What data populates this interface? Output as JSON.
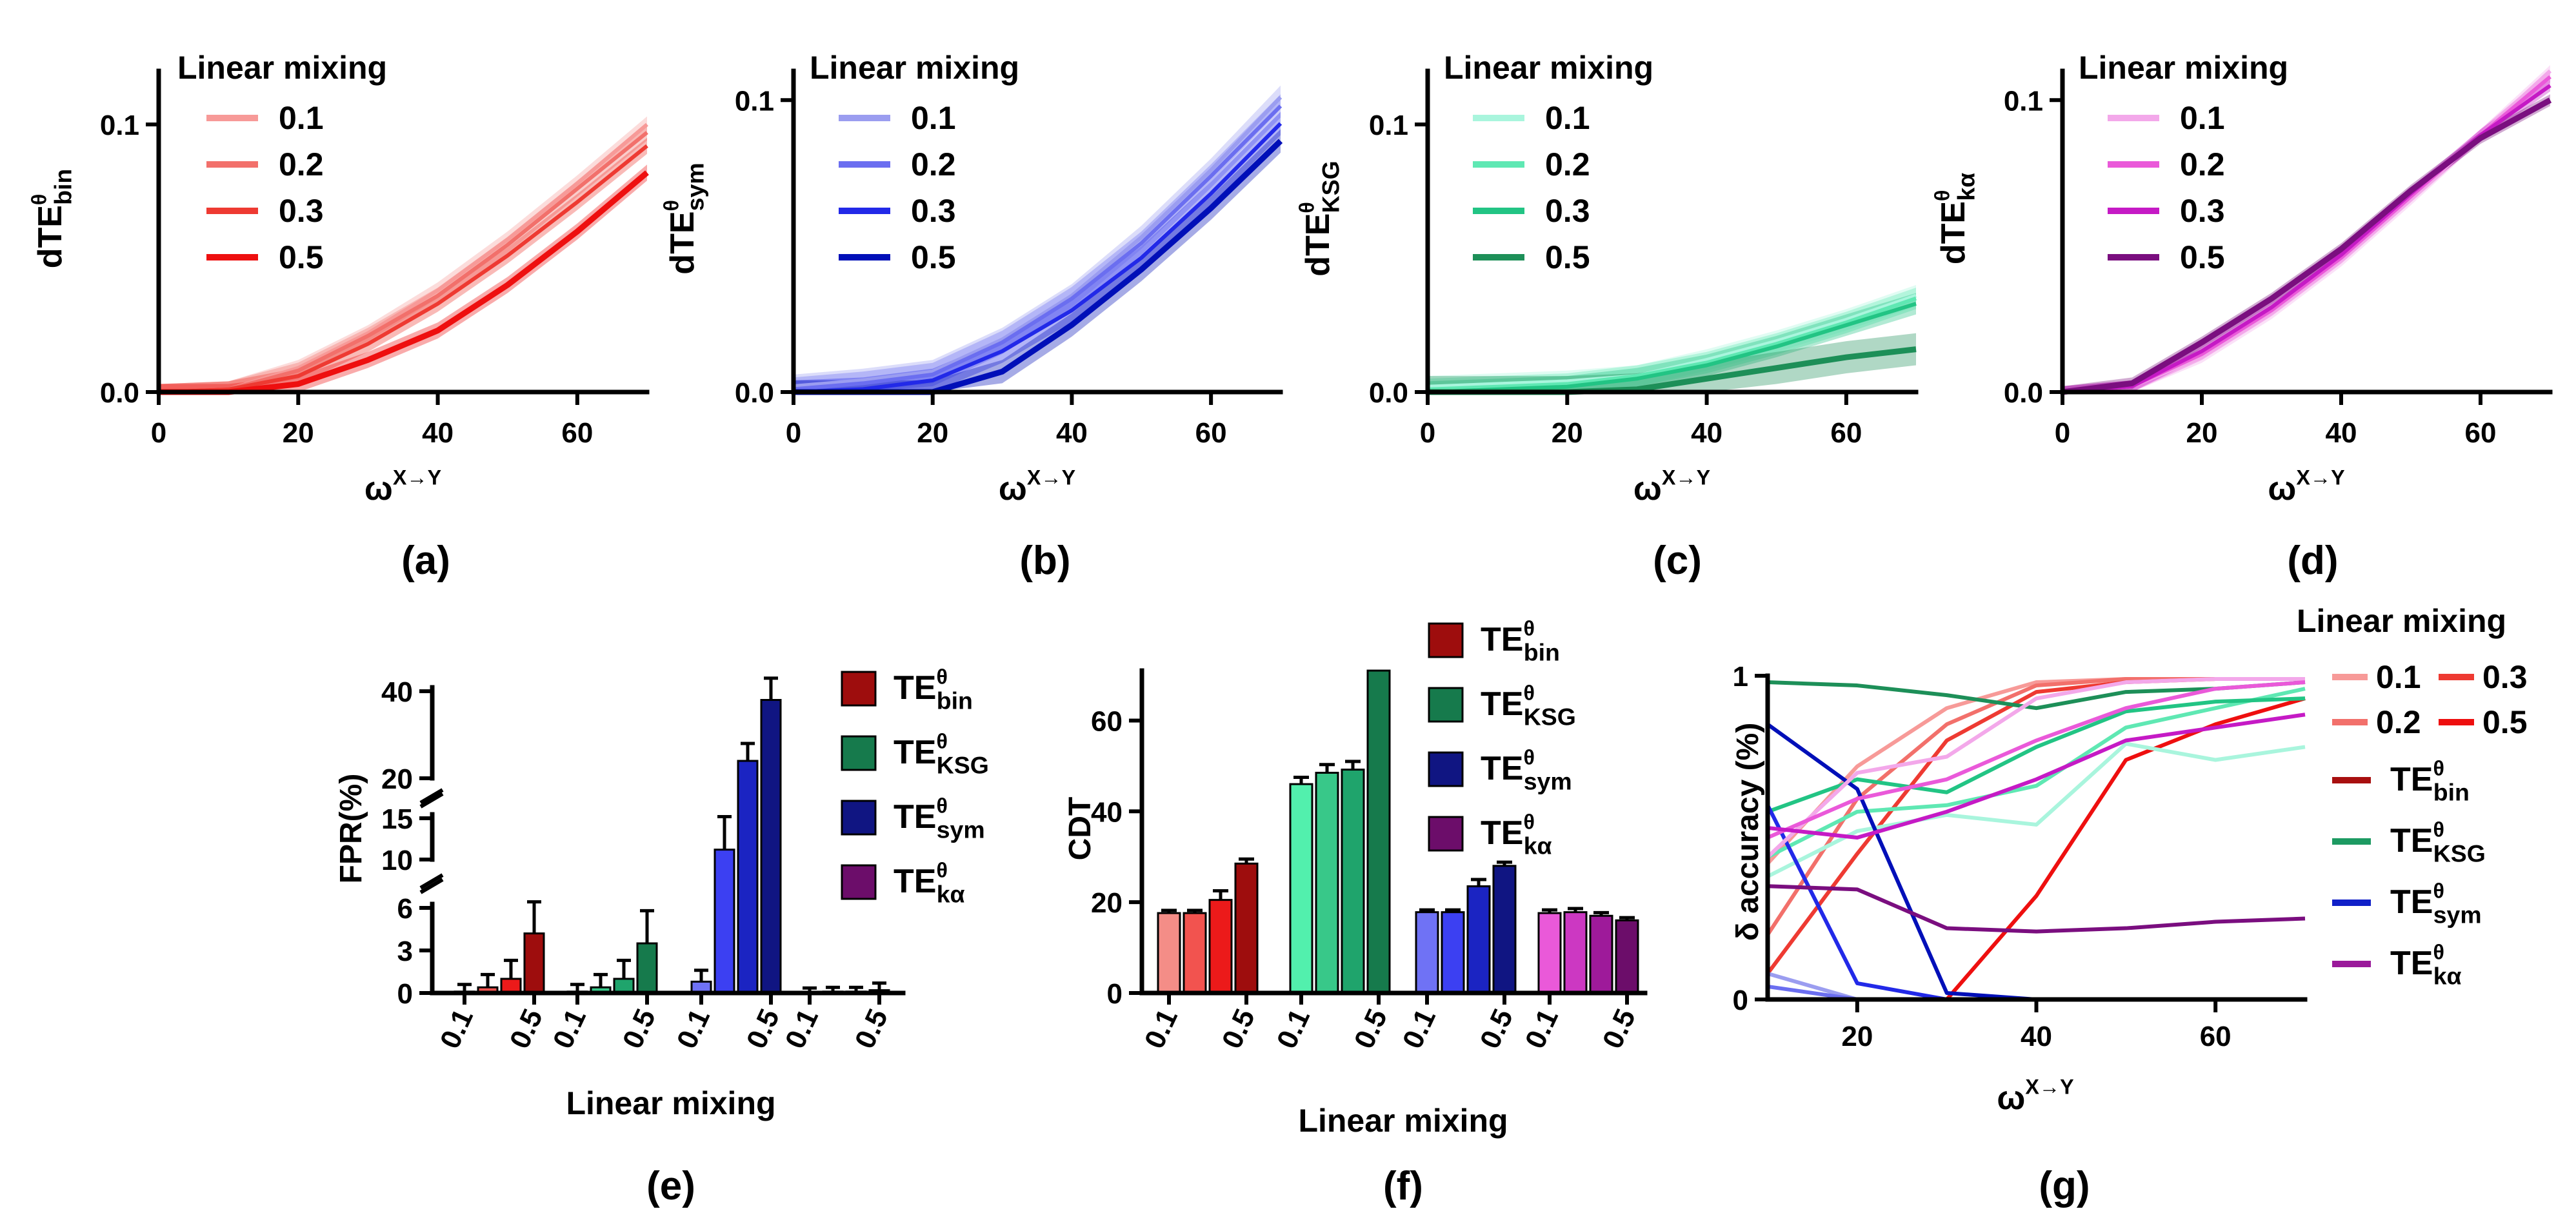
{
  "colors": {
    "bin": [
      "#f79a98",
      "#f2706b",
      "#ee3a32",
      "#ee0f0f"
    ],
    "sym": [
      "#9b9df0",
      "#6b6ef0",
      "#2229e8",
      "#000fb8"
    ],
    "ksg": [
      "#a9f5dd",
      "#5fe8b3",
      "#22c484",
      "#1d8f58"
    ],
    "ka": [
      "#f3a8ea",
      "#ea59d9",
      "#c51ac5",
      "#7a0e7f"
    ],
    "bar_bin": [
      "#f48d87",
      "#f2534f",
      "#ec1a1a",
      "#9e0d0d"
    ],
    "bar_ksg": [
      "#52f0ad",
      "#38c889",
      "#1fa46c",
      "#167a4c"
    ],
    "bar_sym": [
      "#6f72f5",
      "#3c40f2",
      "#1b24c2",
      "#101582"
    ],
    "bar_ka": [
      "#ea59d9",
      "#cc38c2",
      "#9e1a9a",
      "#6c0d6a"
    ],
    "method_bin": "#a80f0f",
    "method_ksg": "#1d9a62",
    "method_sym": "#1020c8",
    "method_ka": "#9a1a9a"
  },
  "legend_title": "Linear mixing",
  "mix_levels": [
    "0.1",
    "0.2",
    "0.3",
    "0.5"
  ],
  "method_names": {
    "bin": {
      "base": "TE",
      "sup": "θ",
      "sub": "bin"
    },
    "ksg": {
      "base": "TE",
      "sup": "θ",
      "sub": "KSG"
    },
    "sym": {
      "base": "TE",
      "sup": "θ",
      "sub": "sym"
    },
    "ka": {
      "base": "TE",
      "sup": "θ",
      "sub": "kα"
    }
  },
  "chart_data": [
    {
      "id": "a",
      "panel_label": "(a)",
      "type": "line",
      "xlabel": {
        "base": "ω",
        "sup": "X→Y"
      },
      "ylabel": {
        "base": "dTE",
        "sup": "θ",
        "sub": "bin"
      },
      "xlim": [
        0,
        70
      ],
      "ylim": [
        0,
        0.12
      ],
      "xticks": [
        "0",
        "20",
        "40",
        "60"
      ],
      "xtick_values": [
        0,
        20,
        40,
        60
      ],
      "yticks": [
        "0.0",
        "0.1"
      ],
      "ytick_values": [
        0,
        0.1
      ],
      "x": [
        0,
        10,
        20,
        30,
        40,
        50,
        60,
        70
      ],
      "series": [
        {
          "name": "0.1",
          "values": [
            0,
            0.001,
            0.009,
            0.022,
            0.038,
            0.057,
            0.078,
            0.1
          ],
          "band": 0.003
        },
        {
          "name": "0.2",
          "values": [
            0,
            0.001,
            0.008,
            0.021,
            0.036,
            0.055,
            0.076,
            0.097
          ],
          "band": 0.003
        },
        {
          "name": "0.3",
          "values": [
            0,
            0.001,
            0.006,
            0.018,
            0.033,
            0.051,
            0.071,
            0.092
          ],
          "band": 0.003
        },
        {
          "name": "0.5",
          "values": [
            0,
            0.0,
            0.003,
            0.012,
            0.023,
            0.04,
            0.06,
            0.082
          ],
          "band": 0.003
        }
      ]
    },
    {
      "id": "b",
      "panel_label": "(b)",
      "type": "line",
      "xlabel": {
        "base": "ω",
        "sup": "X→Y"
      },
      "ylabel": {
        "base": "dTE",
        "sup": "θ",
        "sub": "sym"
      },
      "xlim": [
        0,
        70
      ],
      "ylim": [
        0,
        0.11
      ],
      "xticks": [
        "0",
        "20",
        "40",
        "60"
      ],
      "xtick_values": [
        0,
        20,
        40,
        60
      ],
      "yticks": [
        "0.0",
        "0.1"
      ],
      "ytick_values": [
        0,
        0.1
      ],
      "x": [
        0,
        10,
        20,
        30,
        40,
        50,
        60,
        70
      ],
      "series": [
        {
          "name": "0.1",
          "values": [
            0.002,
            0.004,
            0.007,
            0.018,
            0.033,
            0.053,
            0.076,
            0.101
          ],
          "band": 0.004
        },
        {
          "name": "0.2",
          "values": [
            0.001,
            0.003,
            0.006,
            0.017,
            0.032,
            0.051,
            0.074,
            0.098
          ],
          "band": 0.004
        },
        {
          "name": "0.3",
          "values": [
            0,
            0.001,
            0.004,
            0.014,
            0.028,
            0.046,
            0.068,
            0.092
          ],
          "band": 0.004
        },
        {
          "name": "0.5",
          "values": [
            0,
            0.0,
            0.0,
            0.007,
            0.023,
            0.042,
            0.063,
            0.086
          ],
          "band": 0.004
        }
      ]
    },
    {
      "id": "c",
      "panel_label": "(c)",
      "type": "line",
      "xlabel": {
        "base": "ω",
        "sup": "X→Y"
      },
      "ylabel": {
        "base": "dTE",
        "sup": "θ",
        "sub": "KSG"
      },
      "xlim": [
        0,
        70
      ],
      "ylim": [
        0,
        0.12
      ],
      "xticks": [
        "0",
        "20",
        "40",
        "60"
      ],
      "xtick_values": [
        0,
        20,
        40,
        60
      ],
      "yticks": [
        "0.0",
        "0.1"
      ],
      "ytick_values": [
        0,
        0.1
      ],
      "x": [
        0,
        10,
        20,
        30,
        40,
        50,
        60,
        70
      ],
      "series": [
        {
          "name": "0.1",
          "values": [
            0.002,
            0.003,
            0.004,
            0.006,
            0.012,
            0.019,
            0.027,
            0.036
          ],
          "band": 0.004
        },
        {
          "name": "0.2",
          "values": [
            0.001,
            0.002,
            0.003,
            0.006,
            0.011,
            0.018,
            0.026,
            0.035
          ],
          "band": 0.004
        },
        {
          "name": "0.3",
          "values": [
            0,
            0.001,
            0.002,
            0.005,
            0.01,
            0.017,
            0.025,
            0.033
          ],
          "band": 0.004
        },
        {
          "name": "0.5",
          "values": [
            0,
            0.0,
            0.0,
            0.001,
            0.005,
            0.009,
            0.013,
            0.016
          ],
          "band": 0.006
        }
      ]
    },
    {
      "id": "d",
      "panel_label": "(d)",
      "type": "line",
      "xlabel": {
        "base": "ω",
        "sup": "X→Y"
      },
      "ylabel": {
        "base": "dTE",
        "sup": "θ",
        "sub": "kα"
      },
      "xlim": [
        0,
        70
      ],
      "ylim": [
        0,
        0.11
      ],
      "xticks": [
        "0",
        "20",
        "40",
        "60"
      ],
      "xtick_values": [
        0,
        20,
        40,
        60
      ],
      "yticks": [
        "0.0",
        "0.1"
      ],
      "ytick_values": [
        0,
        0.1
      ],
      "x": [
        0,
        10,
        20,
        30,
        40,
        50,
        60,
        70
      ],
      "series": [
        {
          "name": "0.1",
          "values": [
            0,
            0.002,
            0.012,
            0.027,
            0.045,
            0.066,
            0.088,
            0.11
          ],
          "band": 0.002
        },
        {
          "name": "0.2",
          "values": [
            0,
            0.002,
            0.013,
            0.028,
            0.046,
            0.067,
            0.088,
            0.108
          ],
          "band": 0.002
        },
        {
          "name": "0.3",
          "values": [
            0,
            0.002,
            0.014,
            0.029,
            0.047,
            0.068,
            0.088,
            0.105
          ],
          "band": 0.002
        },
        {
          "name": "0.5",
          "values": [
            0,
            0.003,
            0.017,
            0.032,
            0.049,
            0.069,
            0.087,
            0.1
          ],
          "band": 0.002
        }
      ]
    },
    {
      "id": "e",
      "panel_label": "(e)",
      "type": "bar",
      "ylabel": "FPR(%)",
      "xlabel": "Linear mixing",
      "groups": [
        "bin",
        "ksg",
        "sym",
        "ka"
      ],
      "categories": [
        "0.1",
        "0.2",
        "0.3",
        "0.5"
      ],
      "xtick_labels": [
        "0.1",
        "0.5",
        "0.1",
        "0.5",
        "0.1",
        "0.5",
        "0.1",
        "0.5"
      ],
      "yticks": [
        "0",
        "3",
        "6",
        "10",
        "15",
        "20",
        "40"
      ],
      "ytick_values": [
        0,
        3,
        6,
        10,
        15,
        20,
        40
      ],
      "y_axis_broken": true,
      "values": {
        "bin": [
          0.1,
          0.4,
          1.0,
          4.2
        ],
        "ksg": [
          0.1,
          0.4,
          1.0,
          3.5
        ],
        "sym": [
          0.8,
          11.2,
          24,
          38
        ],
        "ka": [
          0.05,
          0.1,
          0.1,
          0.2
        ]
      },
      "errors": {
        "bin": [
          0.5,
          0.9,
          1.3,
          2.3
        ],
        "ksg": [
          0.5,
          0.9,
          1.3,
          2.3
        ],
        "sym": [
          0.8,
          4.0,
          4.0,
          5.0
        ],
        "ka": [
          0.3,
          0.3,
          0.3,
          0.5
        ]
      },
      "legend": [
        "bin",
        "ksg",
        "sym",
        "ka"
      ]
    },
    {
      "id": "f",
      "panel_label": "(f)",
      "type": "bar",
      "ylabel": "CDT",
      "xlabel": "Linear mixing",
      "groups": [
        "bin",
        "ksg",
        "sym",
        "ka"
      ],
      "categories": [
        "0.1",
        "0.2",
        "0.3",
        "0.5"
      ],
      "xtick_labels": [
        "0.1",
        "0.5",
        "0.1",
        "0.5",
        "0.1",
        "0.5",
        "0.1",
        "0.5"
      ],
      "yticks": [
        "0",
        "20",
        "40",
        "60"
      ],
      "ytick_values": [
        0,
        20,
        40,
        60
      ],
      "ylim": [
        0,
        71
      ],
      "values": {
        "bin": [
          17.6,
          17.6,
          20.5,
          28.5
        ],
        "ksg": [
          46,
          48.5,
          49.2,
          71
        ],
        "sym": [
          17.8,
          17.8,
          23.5,
          28
        ],
        "ka": [
          17.6,
          17.8,
          17.0,
          16.0
        ]
      },
      "errors": {
        "bin": [
          0.6,
          0.6,
          2.0,
          1.0
        ],
        "ksg": [
          1.5,
          1.8,
          1.8,
          0
        ],
        "sym": [
          0.5,
          0.5,
          1.5,
          0.8
        ],
        "ka": [
          0.7,
          0.8,
          0.7,
          0.6
        ]
      },
      "legend": [
        "bin",
        "ksg",
        "sym",
        "ka"
      ]
    },
    {
      "id": "g",
      "panel_label": "(g)",
      "type": "line",
      "ylabel": "δ accuracy (%)",
      "xlabel": {
        "base": "ω",
        "sup": "X→Y"
      },
      "xlim": [
        10,
        70
      ],
      "ylim": [
        0,
        1
      ],
      "xticks": [
        "20",
        "40",
        "60"
      ],
      "xtick_values": [
        20,
        40,
        60
      ],
      "yticks": [
        "0",
        "1"
      ],
      "ytick_values": [
        0,
        1
      ],
      "x": [
        10,
        20,
        30,
        40,
        50,
        60,
        70
      ],
      "series": [
        {
          "name": "bin-0.1",
          "method": "bin",
          "mix": 0,
          "values": [
            0.42,
            0.72,
            0.9,
            0.98,
            0.99,
            0.99,
            0.99
          ]
        },
        {
          "name": "bin-0.2",
          "method": "bin",
          "mix": 1,
          "values": [
            0.2,
            0.62,
            0.85,
            0.97,
            0.99,
            0.99,
            0.99
          ]
        },
        {
          "name": "bin-0.3",
          "method": "bin",
          "mix": 2,
          "values": [
            0.08,
            0.45,
            0.8,
            0.95,
            0.98,
            0.99,
            0.99
          ]
        },
        {
          "name": "bin-0.5",
          "method": "bin",
          "mix": 3,
          "values": [
            0.0,
            0.0,
            0.0,
            0.32,
            0.74,
            0.85,
            0.93
          ]
        },
        {
          "name": "ksg-0.1",
          "method": "ksg",
          "mix": 0,
          "values": [
            0.38,
            0.52,
            0.57,
            0.54,
            0.79,
            0.74,
            0.78
          ]
        },
        {
          "name": "ksg-0.2",
          "method": "ksg",
          "mix": 1,
          "values": [
            0.44,
            0.58,
            0.6,
            0.66,
            0.84,
            0.9,
            0.96
          ]
        },
        {
          "name": "ksg-0.3",
          "method": "ksg",
          "mix": 2,
          "values": [
            0.58,
            0.68,
            0.64,
            0.78,
            0.89,
            0.92,
            0.93
          ]
        },
        {
          "name": "ksg-0.5",
          "method": "ksg",
          "mix": 3,
          "values": [
            0.98,
            0.97,
            0.94,
            0.9,
            0.95,
            0.96,
            0.98
          ]
        },
        {
          "name": "sym-0.1",
          "method": "sym",
          "mix": 0,
          "values": [
            0.08,
            0.0,
            0.0,
            0.0,
            0.0,
            0.0,
            0.0
          ]
        },
        {
          "name": "sym-0.2",
          "method": "sym",
          "mix": 1,
          "values": [
            0.04,
            0.0,
            0.0,
            0.0,
            0.0,
            0.0,
            0.0
          ]
        },
        {
          "name": "sym-0.3",
          "method": "sym",
          "mix": 2,
          "values": [
            0.6,
            0.05,
            0.0,
            0.0,
            0.0,
            0.0,
            0.0
          ]
        },
        {
          "name": "sym-0.5",
          "method": "sym",
          "mix": 3,
          "values": [
            0.85,
            0.65,
            0.02,
            0.0,
            0.0,
            0.0,
            0.0
          ]
        },
        {
          "name": "ka-0.1",
          "method": "ka",
          "mix": 0,
          "values": [
            0.44,
            0.7,
            0.75,
            0.93,
            0.98,
            0.99,
            0.99
          ]
        },
        {
          "name": "ka-0.2",
          "method": "ka",
          "mix": 1,
          "values": [
            0.5,
            0.62,
            0.68,
            0.8,
            0.9,
            0.96,
            0.98
          ]
        },
        {
          "name": "ka-0.3",
          "method": "ka",
          "mix": 2,
          "values": [
            0.53,
            0.5,
            0.58,
            0.68,
            0.8,
            0.84,
            0.88
          ]
        },
        {
          "name": "ka-0.5",
          "method": "ka",
          "mix": 3,
          "values": [
            0.35,
            0.34,
            0.22,
            0.21,
            0.22,
            0.24,
            0.25
          ]
        }
      ],
      "legend": {
        "mix_title": "Linear mixing",
        "mix_labels": [
          "0.1",
          "0.3",
          "0.2",
          "0.5"
        ],
        "methods": [
          "bin",
          "ksg",
          "sym",
          "ka"
        ]
      }
    }
  ]
}
